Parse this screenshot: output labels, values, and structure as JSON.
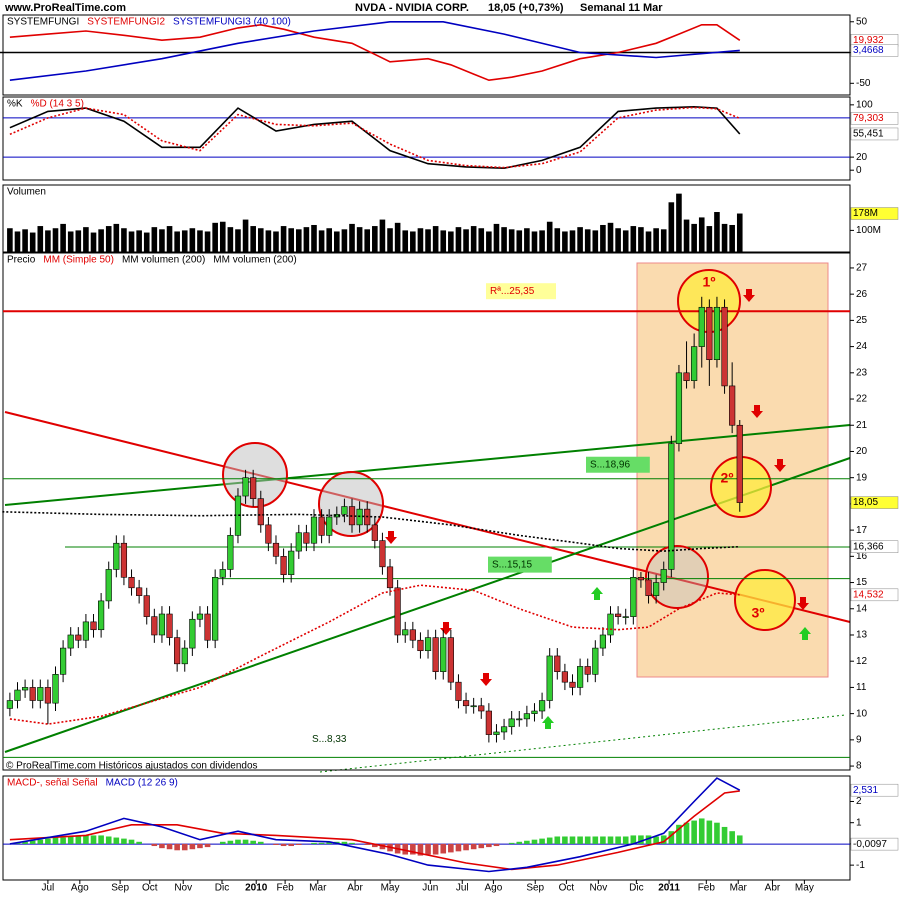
{
  "header": {
    "site": "www.ProRealTime.com",
    "title": "NVDA - NVIDIA CORP.",
    "quote": "18,05 (+0,73%)",
    "period": "Semanal  11 Mar"
  },
  "footer": "© ProRealTime.com Históricos ajustados con dividendos",
  "annotations": [
    "1º",
    "2º",
    "3º"
  ],
  "chart_data": [
    {
      "type": "line",
      "xlim": [
        -1.3,
        110.5
      ],
      "ylim": [
        -69,
        61
      ],
      "yticks": [
        50,
        0,
        -50
      ],
      "legend": [
        {
          "text": "SYSTEMFUNGI",
          "color": "#000000"
        },
        {
          "text": "SYSTEMFUNGI2",
          "color": "#e00000"
        },
        {
          "text": "SYSTEMFUNGI3 (40 100)",
          "color": "#0000c0"
        }
      ],
      "series": [
        {
          "color": "#000000",
          "x": [
            -1.3,
            110.5
          ],
          "values": [
            0,
            0
          ]
        },
        {
          "color": "#e00000",
          "x": [
            0,
            5,
            10,
            15,
            20,
            25,
            30,
            33,
            36,
            40,
            45,
            50,
            55,
            58,
            61,
            63,
            66,
            70,
            75,
            80,
            85,
            88,
            91,
            93,
            96
          ],
          "values": [
            25,
            30,
            35,
            28,
            20,
            25,
            40,
            45,
            38,
            25,
            15,
            -15,
            -10,
            -20,
            -35,
            -45,
            -40,
            -30,
            -10,
            0,
            15,
            30,
            45,
            45,
            19.932
          ],
          "last_label": "19,932"
        },
        {
          "color": "#0000c0",
          "x": [
            0,
            10,
            20,
            30,
            40,
            50,
            57,
            65,
            75,
            85,
            96
          ],
          "values": [
            -45,
            -30,
            -10,
            15,
            35,
            50,
            50,
            30,
            0,
            -8,
            3.4668
          ],
          "last_label": "3,4668"
        }
      ]
    },
    {
      "type": "line",
      "xlim": [
        -1.3,
        110.5
      ],
      "ylim": [
        -15,
        112
      ],
      "yticks": [
        100,
        20,
        0
      ],
      "hlines": [
        {
          "value": 80
        },
        {
          "value": 20
        }
      ],
      "hline_color": "#0000c0",
      "legend": [
        {
          "text": "%K",
          "color": "#000000"
        },
        {
          "text": "%D (14 3 5)",
          "color": "#e00000"
        }
      ],
      "series": [
        {
          "color": "#000000",
          "x": [
            0,
            5,
            10,
            15,
            20,
            25,
            30,
            35,
            40,
            45,
            50,
            55,
            60,
            65,
            70,
            75,
            80,
            85,
            90,
            93,
            96
          ],
          "values": [
            65,
            90,
            95,
            75,
            35,
            35,
            95,
            60,
            70,
            75,
            30,
            10,
            5,
            3,
            15,
            35,
            90,
            95,
            97,
            95,
            55.451
          ],
          "last_label": "55,451"
        },
        {
          "color": "#e00000",
          "dash": true,
          "x": [
            0,
            5,
            10,
            15,
            20,
            25,
            30,
            35,
            40,
            45,
            50,
            55,
            60,
            65,
            70,
            75,
            80,
            85,
            90,
            93,
            96
          ],
          "values": [
            55,
            80,
            95,
            85,
            45,
            30,
            85,
            70,
            68,
            72,
            40,
            15,
            7,
            4,
            10,
            28,
            80,
            92,
            96,
            94,
            79.303
          ],
          "last_label": "79,303"
        }
      ]
    },
    {
      "type": "bar",
      "xlim": [
        -1.3,
        110.5
      ],
      "ylim": [
        0,
        310
      ],
      "yticks": [
        {
          "value": 100,
          "label": "100M"
        }
      ],
      "legend": [
        {
          "text": "Volumen",
          "color": "#000000"
        }
      ],
      "color": "#000000",
      "last_label": "178M",
      "label_bg": "#ffff33",
      "values": [
        110,
        95,
        105,
        90,
        120,
        100,
        110,
        130,
        95,
        100,
        115,
        90,
        105,
        120,
        130,
        110,
        95,
        100,
        90,
        115,
        105,
        120,
        95,
        100,
        110,
        100,
        95,
        135,
        140,
        115,
        105,
        150,
        120,
        110,
        100,
        95,
        120,
        110,
        105,
        115,
        125,
        100,
        110,
        95,
        105,
        130,
        115,
        105,
        120,
        150,
        110,
        135,
        100,
        95,
        110,
        105,
        120,
        100,
        95,
        115,
        105,
        120,
        110,
        95,
        130,
        115,
        105,
        100,
        110,
        95,
        100,
        140,
        110,
        95,
        100,
        115,
        105,
        100,
        125,
        135,
        110,
        100,
        120,
        115,
        95,
        110,
        105,
        230,
        270,
        150,
        130,
        160,
        120,
        185,
        130,
        125,
        178
      ]
    },
    {
      "type": "candlestick",
      "xlim": [
        -1.3,
        110.5
      ],
      "ylim": [
        7.85,
        27.57
      ],
      "yticks": [
        8,
        9,
        10,
        11,
        12,
        13,
        14,
        15,
        16,
        17,
        18,
        19,
        20,
        21,
        22,
        23,
        24,
        25,
        26,
        27
      ],
      "legend": [
        {
          "text": "Precio",
          "color": "#000000"
        },
        {
          "text": "MM (Simple 50)",
          "color": "#e00000"
        },
        {
          "text": "MM volumen (200)",
          "color": "#000000"
        },
        {
          "text": "MM volumen (200)",
          "color": "#000000"
        }
      ],
      "up_color": "#33cc33",
      "down_color": "#cc3333",
      "close_label": "18,05",
      "label_bg": "#ffff33",
      "open": [
        10.2,
        10.5,
        10.9,
        11,
        10.5,
        11,
        10.4,
        11.5,
        12.5,
        13,
        12.8,
        13.5,
        13.2,
        14.3,
        15.5,
        16.5,
        15.2,
        14.8,
        14.5,
        13.7,
        13,
        13.8,
        12.9,
        11.9,
        12.5,
        13.6,
        13.8,
        12.8,
        15.2,
        15.5,
        16.8,
        18.3,
        19,
        18.2,
        17.2,
        16.5,
        16,
        15.3,
        16.2,
        16.9,
        16.5,
        17.5,
        16.8,
        17.5,
        17.6,
        17.9,
        17.2,
        17.8,
        17.2,
        16.6,
        15.6,
        14.8,
        13,
        13.2,
        12.8,
        12.4,
        12.9,
        11.6,
        12.9,
        11.2,
        10.5,
        10.3,
        10.3,
        10.1,
        9.2,
        9.3,
        9.5,
        9.8,
        9.8,
        10,
        10.1,
        10.5,
        12.2,
        11.6,
        11.2,
        11,
        11.8,
        11.5,
        12.5,
        13,
        13.8,
        13.7,
        13.7,
        15.2,
        15.1,
        14.5,
        15,
        15.5,
        20.3,
        23,
        22.7,
        24,
        25.5,
        23.5,
        25.5,
        22.5,
        21
      ],
      "high": [
        10.8,
        11.2,
        11.3,
        11.3,
        11.3,
        11.3,
        11.8,
        12.8,
        13.3,
        13.3,
        13.8,
        13.8,
        14.6,
        15.8,
        16.8,
        16.8,
        15.5,
        15.1,
        14.8,
        14,
        14.1,
        14.1,
        13.2,
        12.8,
        13.9,
        14.1,
        14.1,
        15.5,
        15.8,
        17.1,
        18.6,
        19.3,
        19.3,
        18.5,
        17.5,
        16.8,
        16.3,
        16.5,
        17.2,
        17.2,
        17.8,
        17.8,
        17.8,
        17.9,
        18.2,
        18.2,
        18.1,
        18.1,
        17.5,
        16.9,
        15.9,
        15.1,
        13.5,
        13.5,
        13.1,
        13.2,
        13.2,
        13.2,
        13.2,
        11.5,
        10.8,
        10.6,
        10.6,
        10.4,
        9.6,
        9.8,
        10.1,
        10.1,
        10.3,
        10.4,
        10.8,
        12.5,
        12.5,
        11.9,
        11.5,
        12.1,
        12.1,
        12.8,
        13.3,
        14.1,
        14.1,
        14,
        15.5,
        15.4,
        15.4,
        15.3,
        15.8,
        20.6,
        23.3,
        24.2,
        24.5,
        25.9,
        25.8,
        25.9,
        25.8,
        23.4,
        21.2
      ],
      "low": [
        9.9,
        10.2,
        10.6,
        10.2,
        10.2,
        9.6,
        10.1,
        11.2,
        12.2,
        12.5,
        12.5,
        12.9,
        12.9,
        14,
        15.2,
        14.9,
        14.5,
        14.2,
        13.4,
        12.7,
        12.7,
        12.6,
        11.6,
        11.6,
        12.2,
        13.3,
        12.5,
        12.5,
        14.9,
        15.2,
        16.5,
        18,
        17.9,
        16.9,
        16.2,
        15.7,
        15,
        15,
        15.9,
        16.2,
        16.2,
        16.5,
        16.5,
        17.2,
        17.3,
        16.9,
        16.9,
        16.9,
        16.3,
        15.3,
        14.5,
        12.7,
        12.7,
        12.5,
        12.1,
        12.1,
        11.3,
        11.3,
        10.9,
        10.2,
        10,
        10,
        9.8,
        8.9,
        8.9,
        9,
        9.2,
        9.5,
        9.5,
        9.7,
        9.8,
        10.2,
        11.3,
        10.9,
        10.7,
        10.7,
        11.2,
        11.2,
        12.2,
        12.7,
        13.4,
        13.4,
        13.4,
        14.8,
        14.2,
        14.2,
        14.7,
        15.2,
        20,
        22.4,
        22.4,
        23.2,
        22.5,
        23.2,
        22.2,
        20.7,
        17.7
      ],
      "close": [
        10.5,
        10.9,
        11,
        10.5,
        11,
        10.4,
        11.5,
        12.5,
        13,
        12.8,
        13.5,
        13.2,
        14.3,
        15.5,
        16.5,
        15.2,
        14.8,
        14.5,
        13.7,
        13,
        13.8,
        12.9,
        11.9,
        12.5,
        13.6,
        13.8,
        12.8,
        15.2,
        15.5,
        16.8,
        18.3,
        19,
        18.2,
        17.2,
        16.5,
        16,
        15.3,
        16.2,
        16.9,
        16.5,
        17.5,
        16.8,
        17.5,
        17.6,
        17.9,
        17.2,
        17.8,
        17.2,
        16.6,
        15.6,
        14.8,
        13,
        13.2,
        12.8,
        12.4,
        12.9,
        11.6,
        12.9,
        11.2,
        10.5,
        10.3,
        10.3,
        10.1,
        9.2,
        9.3,
        9.5,
        9.8,
        9.8,
        10,
        10.1,
        10.5,
        12.2,
        11.6,
        11.2,
        11,
        11.8,
        11.5,
        12.5,
        13,
        13.8,
        13.7,
        13.7,
        15.2,
        15.1,
        14.5,
        15,
        15.5,
        20.3,
        23,
        22.7,
        24,
        25.5,
        23.5,
        25.5,
        22.5,
        21,
        18.05
      ],
      "levels": [
        {
          "value": 25.35,
          "label": "Rª...25,35",
          "color": "#e00000"
        },
        {
          "value": 18.96,
          "label": "S...18,96",
          "color": "#008000"
        },
        {
          "value": 15.15,
          "label": "S...15,15",
          "color": "#008000"
        },
        {
          "value": 8.33,
          "label": "S...8,33",
          "color": "#008000"
        }
      ],
      "series": [
        {
          "color": "#e00000",
          "dash": true,
          "x": [
            0,
            5,
            12,
            25,
            33,
            42,
            49,
            54,
            61,
            67,
            74,
            80,
            84,
            88,
            93,
            96
          ],
          "values": [
            9.8,
            9.6,
            9.9,
            11,
            12.2,
            13.5,
            14.6,
            14.9,
            14.7,
            14,
            13.3,
            13.2,
            13.3,
            14,
            14.6,
            14.532
          ],
          "last_label": "14,532"
        },
        {
          "color": "#000000",
          "dash": true,
          "x": [
            -1,
            12,
            25,
            38,
            49,
            58,
            67,
            75,
            80,
            86,
            91,
            96
          ],
          "values": [
            17.7,
            17.6,
            17.55,
            17.6,
            17.5,
            17.2,
            16.8,
            16.5,
            16.3,
            16.2,
            16.3,
            16.366
          ],
          "last_label": "16,366"
        }
      ]
    },
    {
      "type": "line",
      "xlim": [
        -1.3,
        110.5
      ],
      "ylim": [
        -1.7,
        3.2
      ],
      "yticks": [
        2,
        1,
        0,
        -1
      ],
      "hlines": [
        {
          "value": -0.0097,
          "label": "-0,0097"
        }
      ],
      "hline_color": "#0000c0",
      "legend": [
        {
          "text": "MACD-, señal Señal",
          "color": "#e00000"
        },
        {
          "text": "MACD (12 26 9)",
          "color": "#0000c0"
        }
      ],
      "xticks": [
        {
          "value": 5,
          "label": "Jul"
        },
        {
          "value": 9.2,
          "label": "Ago"
        },
        {
          "value": 14.5,
          "label": "Sep"
        },
        {
          "value": 18.4,
          "label": "Oct"
        },
        {
          "value": 22.8,
          "label": "Nov"
        },
        {
          "value": 27.9,
          "label": "Dic"
        },
        {
          "value": 32.4,
          "label": "2010"
        },
        {
          "value": 36.2,
          "label": "Feb"
        },
        {
          "value": 40.5,
          "label": "Mar"
        },
        {
          "value": 45.4,
          "label": "Abr"
        },
        {
          "value": 50,
          "label": "May"
        },
        {
          "value": 55.3,
          "label": "Jun"
        },
        {
          "value": 59.5,
          "label": "Jul"
        },
        {
          "value": 63.6,
          "label": "Ago"
        },
        {
          "value": 69.1,
          "label": "Sep"
        },
        {
          "value": 73.2,
          "label": "Oct"
        },
        {
          "value": 77.4,
          "label": "Nov"
        },
        {
          "value": 82.4,
          "label": "Dic"
        },
        {
          "value": 86.7,
          "label": "2011"
        },
        {
          "value": 91.6,
          "label": "Feb"
        },
        {
          "value": 95.8,
          "label": "Mar"
        },
        {
          "value": 100.3,
          "label": "Abr"
        },
        {
          "value": 104.5,
          "label": "May"
        }
      ],
      "series": [
        {
          "kind": "bar",
          "color": "#33cc33",
          "neg_color": "#cc4444",
          "values": [
            0,
            0.05,
            0.1,
            0.15,
            0.2,
            0.25,
            0.3,
            0.3,
            0.35,
            0.35,
            0.4,
            0.4,
            0.4,
            0.35,
            0.3,
            0.25,
            0.2,
            0.1,
            0,
            -0.1,
            -0.2,
            -0.25,
            -0.3,
            -0.3,
            -0.25,
            -0.2,
            -0.15,
            0,
            0.1,
            0.15,
            0.2,
            0.2,
            0.15,
            0.1,
            0,
            -0.05,
            -0.1,
            -0.1,
            -0.05,
            0,
            0.05,
            0.05,
            0.1,
            0.1,
            0.1,
            0.05,
            0,
            -0.05,
            -0.15,
            -0.25,
            -0.35,
            -0.45,
            -0.5,
            -0.5,
            -0.55,
            -0.5,
            -0.5,
            -0.45,
            -0.4,
            -0.35,
            -0.3,
            -0.25,
            -0.2,
            -0.15,
            -0.1,
            0,
            0.05,
            0.1,
            0.15,
            0.2,
            0.25,
            0.3,
            0.35,
            0.35,
            0.35,
            0.35,
            0.35,
            0.35,
            0.35,
            0.35,
            0.35,
            0.35,
            0.4,
            0.4,
            0.4,
            0.35,
            0.4,
            0.6,
            0.9,
            1,
            1.1,
            1.2,
            1.1,
            1,
            0.8,
            0.6,
            0.4
          ]
        },
        {
          "color": "#e00000",
          "x": [
            0,
            10,
            16,
            22,
            28,
            35,
            45,
            52,
            60,
            66,
            72,
            80,
            86,
            90,
            94,
            96
          ],
          "values": [
            0.2,
            0.4,
            0.9,
            0.9,
            0.5,
            0.4,
            0.2,
            -0.3,
            -0.9,
            -1.2,
            -1,
            -0.4,
            0.1,
            1.3,
            2.4,
            2.5
          ]
        },
        {
          "color": "#0000c0",
          "x": [
            0,
            10,
            15,
            20,
            25,
            30,
            35,
            42,
            50,
            55,
            63,
            68,
            75,
            82,
            86,
            90,
            93,
            96
          ],
          "values": [
            0,
            0.6,
            1.2,
            0.8,
            0.2,
            0.6,
            0.2,
            0.1,
            -0.5,
            -1,
            -1.3,
            -1.1,
            -0.6,
            0,
            0.5,
            2,
            3.1,
            2.531
          ],
          "last_label": "2,531"
        }
      ]
    }
  ]
}
